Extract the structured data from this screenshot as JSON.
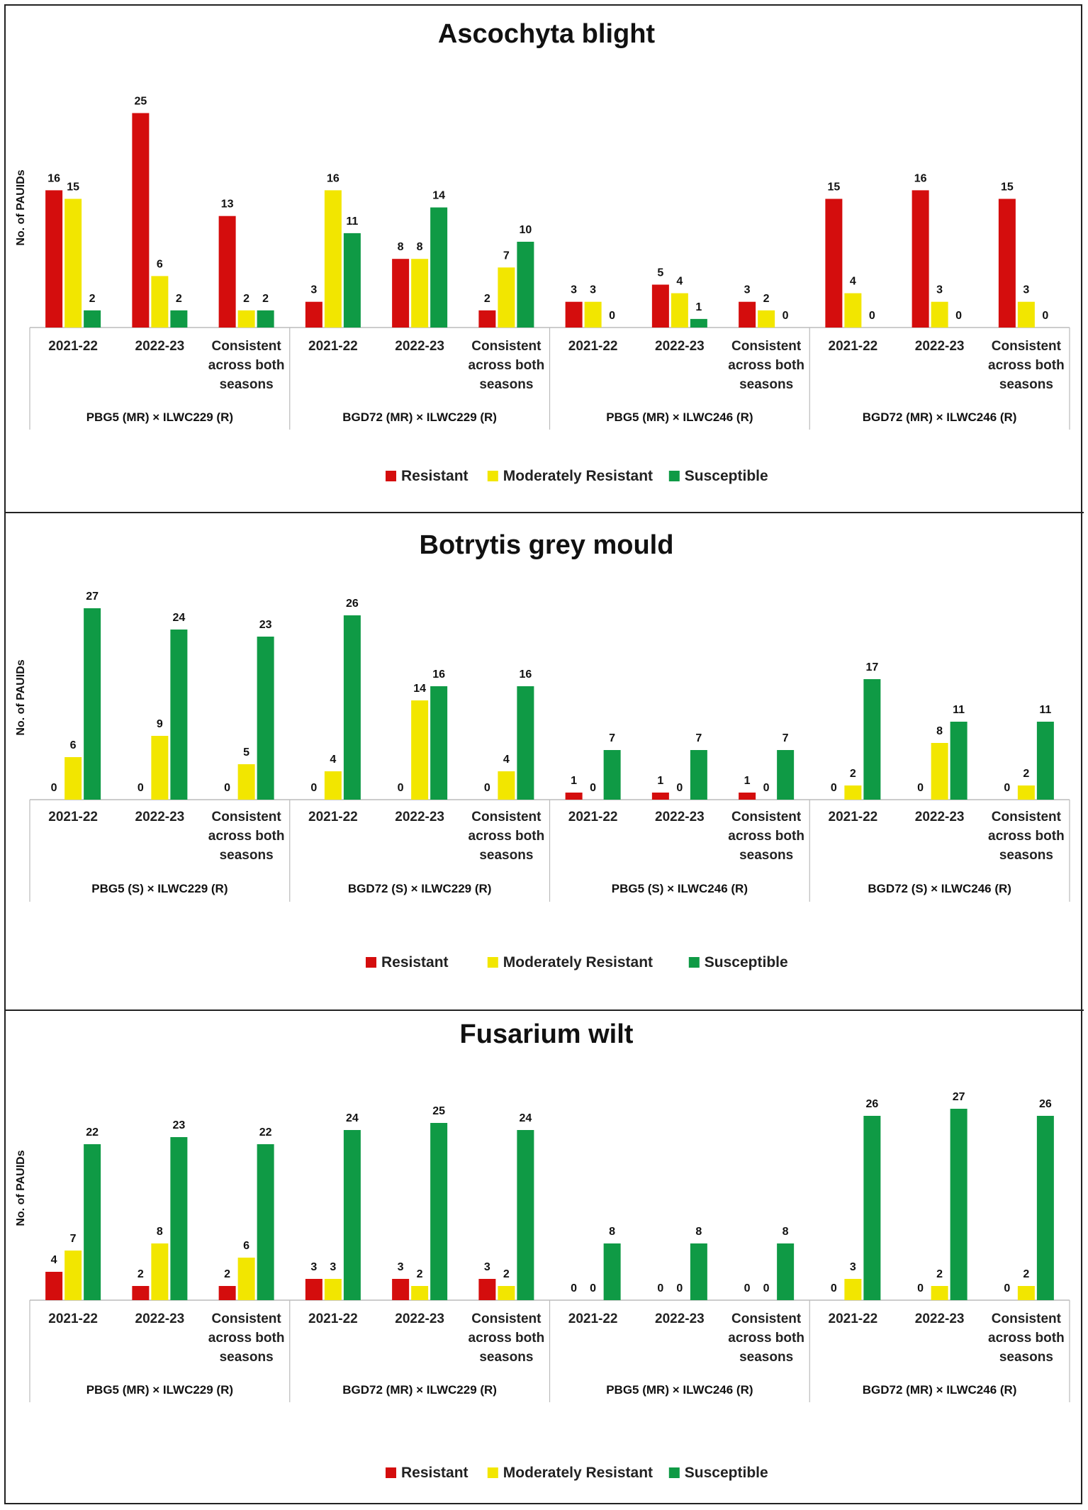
{
  "chart_data": [
    {
      "type": "bar",
      "title": "Ascochyta blight",
      "ylabel": "No. of PAUIDs",
      "xlabel": "",
      "ylim": [
        0,
        28
      ],
      "legend_position": "bottom-center",
      "series_names": [
        "Resistant",
        "Moderately Resistant",
        "Susceptible"
      ],
      "groups": [
        {
          "label": "PBG5 (MR) × ILWC229 (R)",
          "categories": [
            "2021-22",
            "2022-23",
            "Consistent across both seasons"
          ],
          "values": [
            [
              16,
              15,
              2
            ],
            [
              25,
              6,
              2
            ],
            [
              13,
              2,
              2
            ]
          ]
        },
        {
          "label": "BGD72 (MR) × ILWC229 (R)",
          "categories": [
            "2021-22",
            "2022-23",
            "Consistent across both seasons"
          ],
          "values": [
            [
              3,
              16,
              11
            ],
            [
              8,
              8,
              14
            ],
            [
              2,
              7,
              10
            ]
          ]
        },
        {
          "label": "PBG5 (MR) × ILWC246 (R)",
          "categories": [
            "2021-22",
            "2022-23",
            "Consistent across both seasons"
          ],
          "values": [
            [
              3,
              3,
              0
            ],
            [
              5,
              4,
              1
            ],
            [
              3,
              2,
              0
            ]
          ]
        },
        {
          "label": "BGD72 (MR) × ILWC246 (R)",
          "categories": [
            "2021-22",
            "2022-23",
            "Consistent across both seasons"
          ],
          "values": [
            [
              15,
              4,
              0
            ],
            [
              16,
              3,
              0
            ],
            [
              15,
              3,
              0
            ]
          ]
        }
      ]
    },
    {
      "type": "bar",
      "title": "Botrytis grey mould",
      "ylabel": "No. of PAUIDs",
      "xlabel": "",
      "ylim": [
        0,
        28
      ],
      "legend_position": "bottom-center",
      "series_names": [
        "Resistant",
        "Moderately Resistant",
        "Susceptible"
      ],
      "groups": [
        {
          "label": "PBG5 (S) × ILWC229 (R)",
          "categories": [
            "2021-22",
            "2022-23",
            "Consistent across both seasons"
          ],
          "values": [
            [
              0,
              6,
              27
            ],
            [
              0,
              9,
              24
            ],
            [
              0,
              5,
              23
            ]
          ]
        },
        {
          "label": "BGD72 (S) × ILWC229 (R)",
          "categories": [
            "2021-22",
            "2022-23",
            "Consistent across both seasons"
          ],
          "values": [
            [
              0,
              4,
              26
            ],
            [
              0,
              14,
              16
            ],
            [
              0,
              4,
              16
            ]
          ]
        },
        {
          "label": "PBG5 (S) × ILWC246 (R)",
          "categories": [
            "2021-22",
            "2022-23",
            "Consistent across both seasons"
          ],
          "values": [
            [
              1,
              0,
              7
            ],
            [
              1,
              0,
              7
            ],
            [
              1,
              0,
              7
            ]
          ]
        },
        {
          "label": "BGD72 (S) × ILWC246 (R)",
          "categories": [
            "2021-22",
            "2022-23",
            "Consistent across both seasons"
          ],
          "values": [
            [
              0,
              2,
              17
            ],
            [
              0,
              8,
              11
            ],
            [
              0,
              2,
              11
            ]
          ]
        }
      ]
    },
    {
      "type": "bar",
      "title": "Fusarium wilt",
      "ylabel": "No. of PAUIDs",
      "xlabel": "",
      "ylim": [
        0,
        28
      ],
      "legend_position": "bottom-center",
      "series_names": [
        "Resistant",
        "Moderately Resistant",
        "Susceptible"
      ],
      "groups": [
        {
          "label": "PBG5 (MR) × ILWC229 (R)",
          "categories": [
            "2021-22",
            "2022-23",
            "Consistent across both seasons"
          ],
          "values": [
            [
              4,
              7,
              22
            ],
            [
              2,
              8,
              23
            ],
            [
              2,
              6,
              22
            ]
          ]
        },
        {
          "label": "BGD72 (MR) × ILWC229 (R)",
          "categories": [
            "2021-22",
            "2022-23",
            "Consistent across both seasons"
          ],
          "values": [
            [
              3,
              3,
              24
            ],
            [
              3,
              2,
              25
            ],
            [
              3,
              2,
              24
            ]
          ]
        },
        {
          "label": "PBG5 (MR) × ILWC246 (R)",
          "categories": [
            "2021-22",
            "2022-23",
            "Consistent across both seasons"
          ],
          "values": [
            [
              0,
              0,
              8
            ],
            [
              0,
              0,
              8
            ],
            [
              0,
              0,
              8
            ]
          ]
        },
        {
          "label": "BGD72 (MR) × ILWC246 (R)",
          "categories": [
            "2021-22",
            "2022-23",
            "Consistent across both seasons"
          ],
          "values": [
            [
              0,
              3,
              26
            ],
            [
              0,
              2,
              27
            ],
            [
              0,
              2,
              26
            ]
          ]
        }
      ]
    }
  ],
  "colors": {
    "resistant": "#d40d0d",
    "moderately_resistant": "#f2e600",
    "susceptible": "#0f9a45",
    "axis": "#bbbbbb",
    "text": "#111111"
  }
}
